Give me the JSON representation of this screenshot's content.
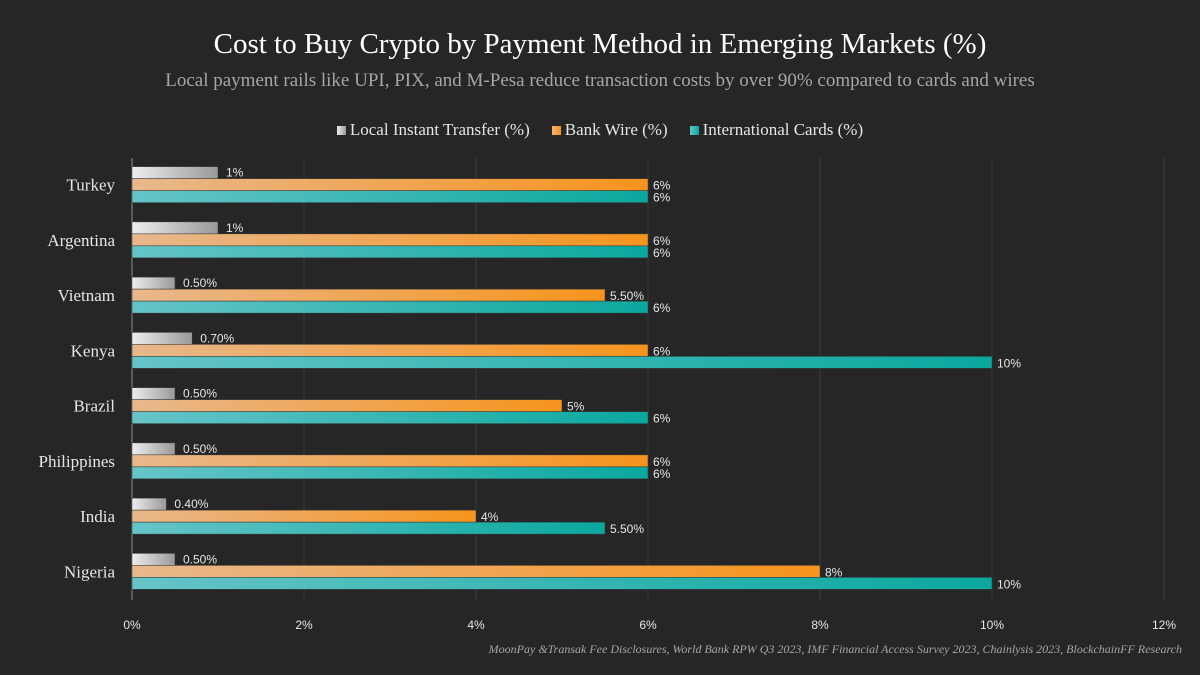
{
  "title": "Cost to Buy Crypto by Payment Method in Emerging Markets (%)",
  "subtitle": "Local payment rails like UPI, PIX, and M-Pesa reduce transaction costs by over 90% compared to cards and wires",
  "source": "MoonPay &Transak Fee Disclosures, World Bank RPW Q3 2023, IMF Financial Access Survey 2023, Chainlysis 2023, BlockchainFF Research",
  "chart_data": {
    "type": "bar",
    "orientation": "horizontal",
    "categories": [
      "Turkey",
      "Argentina",
      "Vietnam",
      "Kenya",
      "Brazil",
      "Philippines",
      "India",
      "Nigeria"
    ],
    "series": [
      {
        "name": "Local Instant Transfer (%)",
        "color": "#bfbfbf",
        "values": [
          1,
          1,
          0.5,
          0.7,
          0.5,
          0.5,
          0.4,
          0.5
        ],
        "labels": [
          "1%",
          "1%",
          "0.50%",
          "0.70%",
          "0.50%",
          "0.50%",
          "0.40%",
          "0.50%"
        ]
      },
      {
        "name": "Bank Wire (%)",
        "color": "#f7941d",
        "values": [
          6,
          6,
          5.5,
          6,
          5,
          6,
          4,
          8
        ],
        "labels": [
          "6%",
          "6%",
          "5.50%",
          "6%",
          "5%",
          "6%",
          "4%",
          "8%"
        ]
      },
      {
        "name": "International Cards (%)",
        "color": "#0aa89e",
        "values": [
          6,
          6,
          6,
          10,
          6,
          6,
          5.5,
          10
        ],
        "labels": [
          "6%",
          "6%",
          "6%",
          "10%",
          "6%",
          "6%",
          "5.50%",
          "10%"
        ]
      }
    ],
    "xlim": [
      0,
      12
    ],
    "xticks": [
      "0%",
      "2%",
      "4%",
      "6%",
      "8%",
      "10%",
      "12%"
    ],
    "grid": true,
    "legend": "top"
  }
}
